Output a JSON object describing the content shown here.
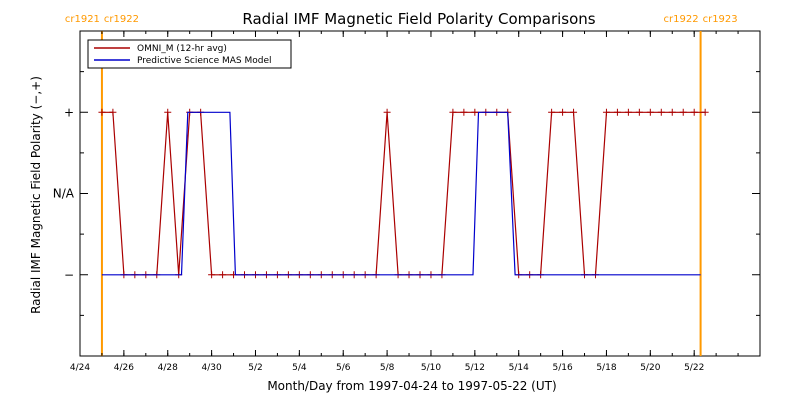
{
  "chart_data": {
    "type": "line",
    "title": "Radial IMF Magnetic Field Polarity Comparisons",
    "xlabel": "Month/Day from 1997-04-24 to 1997-05-22 (UT)",
    "ylabel": "Radial IMF Magnetic Field Polarity (−,+)",
    "xlim": [
      "1997-04-24",
      "1997-05-25"
    ],
    "ylim": [
      -2,
      2
    ],
    "x_ticks": [
      {
        "date": "1997-04-24",
        "label": "4/24"
      },
      {
        "date": "1997-04-26",
        "label": "4/26"
      },
      {
        "date": "1997-04-28",
        "label": "4/28"
      },
      {
        "date": "1997-04-30",
        "label": "4/30"
      },
      {
        "date": "1997-05-02",
        "label": "5/2"
      },
      {
        "date": "1997-05-04",
        "label": "5/4"
      },
      {
        "date": "1997-05-06",
        "label": "5/6"
      },
      {
        "date": "1997-05-08",
        "label": "5/8"
      },
      {
        "date": "1997-05-10",
        "label": "5/10"
      },
      {
        "date": "1997-05-12",
        "label": "5/12"
      },
      {
        "date": "1997-05-14",
        "label": "5/14"
      },
      {
        "date": "1997-05-16",
        "label": "5/16"
      },
      {
        "date": "1997-05-18",
        "label": "5/18"
      },
      {
        "date": "1997-05-20",
        "label": "5/20"
      },
      {
        "date": "1997-05-22",
        "label": "5/22"
      }
    ],
    "y_ticks": [
      {
        "value": 1,
        "label": "+"
      },
      {
        "value": 0,
        "label": "N/A"
      },
      {
        "value": -1,
        "label": "−"
      }
    ],
    "grid": false,
    "legend_position": "top-left",
    "cr_markers": [
      {
        "date": "1997-04-25T00:00",
        "labels": [
          "cr1921",
          "cr1922"
        ],
        "color": "#ff9900"
      },
      {
        "date": "1997-05-22T07:00",
        "labels": [
          "cr1922",
          "cr1923"
        ],
        "color": "#ff9900"
      }
    ],
    "series": [
      {
        "name": "OMNI_M (12-hr avg)",
        "color": "#aa0000",
        "markers": true,
        "points": [
          [
            "1997-04-25T00:00",
            1
          ],
          [
            "1997-04-25T12:00",
            1
          ],
          [
            "1997-04-26T00:00",
            -1
          ],
          [
            "1997-04-26T12:00",
            -1
          ],
          [
            "1997-04-27T00:00",
            -1
          ],
          [
            "1997-04-27T12:00",
            -1
          ],
          [
            "1997-04-28T00:00",
            1
          ],
          [
            "1997-04-28T12:00",
            -1
          ],
          [
            "1997-04-29T00:00",
            1
          ],
          [
            "1997-04-29T12:00",
            1
          ],
          [
            "1997-04-30T00:00",
            -1
          ],
          [
            "1997-04-30T12:00",
            -1
          ],
          [
            "1997-05-01T00:00",
            -1
          ],
          [
            "1997-05-01T12:00",
            -1
          ],
          [
            "1997-05-02T00:00",
            -1
          ],
          [
            "1997-05-02T12:00",
            -1
          ],
          [
            "1997-05-03T00:00",
            -1
          ],
          [
            "1997-05-03T12:00",
            -1
          ],
          [
            "1997-05-04T00:00",
            -1
          ],
          [
            "1997-05-04T12:00",
            -1
          ],
          [
            "1997-05-05T00:00",
            -1
          ],
          [
            "1997-05-05T12:00",
            -1
          ],
          [
            "1997-05-06T00:00",
            -1
          ],
          [
            "1997-05-06T12:00",
            -1
          ],
          [
            "1997-05-07T00:00",
            -1
          ],
          [
            "1997-05-07T12:00",
            -1
          ],
          [
            "1997-05-08T00:00",
            1
          ],
          [
            "1997-05-08T12:00",
            -1
          ],
          [
            "1997-05-09T00:00",
            -1
          ],
          [
            "1997-05-09T12:00",
            -1
          ],
          [
            "1997-05-10T00:00",
            -1
          ],
          [
            "1997-05-10T12:00",
            -1
          ],
          [
            "1997-05-11T00:00",
            1
          ],
          [
            "1997-05-11T12:00",
            1
          ],
          [
            "1997-05-12T00:00",
            1
          ],
          [
            "1997-05-12T12:00",
            1
          ],
          [
            "1997-05-13T00:00",
            1
          ],
          [
            "1997-05-13T12:00",
            1
          ],
          [
            "1997-05-14T00:00",
            -1
          ],
          [
            "1997-05-14T12:00",
            -1
          ],
          [
            "1997-05-15T00:00",
            -1
          ],
          [
            "1997-05-15T12:00",
            1
          ],
          [
            "1997-05-16T00:00",
            1
          ],
          [
            "1997-05-16T12:00",
            1
          ],
          [
            "1997-05-17T00:00",
            -1
          ],
          [
            "1997-05-17T12:00",
            -1
          ],
          [
            "1997-05-18T00:00",
            1
          ],
          [
            "1997-05-18T12:00",
            1
          ],
          [
            "1997-05-19T00:00",
            1
          ],
          [
            "1997-05-19T12:00",
            1
          ],
          [
            "1997-05-20T00:00",
            1
          ],
          [
            "1997-05-20T12:00",
            1
          ],
          [
            "1997-05-21T00:00",
            1
          ],
          [
            "1997-05-21T12:00",
            1
          ],
          [
            "1997-05-22T00:00",
            1
          ],
          [
            "1997-05-22T12:00",
            1
          ]
        ]
      },
      {
        "name": "Predictive Science MAS Model",
        "color": "#0000cc",
        "markers": false,
        "points": [
          [
            "1997-04-25T00:00",
            -1
          ],
          [
            "1997-04-28T15:00",
            -1
          ],
          [
            "1997-04-28T22:00",
            1
          ],
          [
            "1997-04-30T20:00",
            1
          ],
          [
            "1997-05-01T02:00",
            -1
          ],
          [
            "1997-05-11T22:00",
            -1
          ],
          [
            "1997-05-12T04:00",
            1
          ],
          [
            "1997-05-13T12:00",
            1
          ],
          [
            "1997-05-13T20:00",
            -1
          ],
          [
            "1997-05-22T07:00",
            -1
          ]
        ]
      }
    ]
  }
}
